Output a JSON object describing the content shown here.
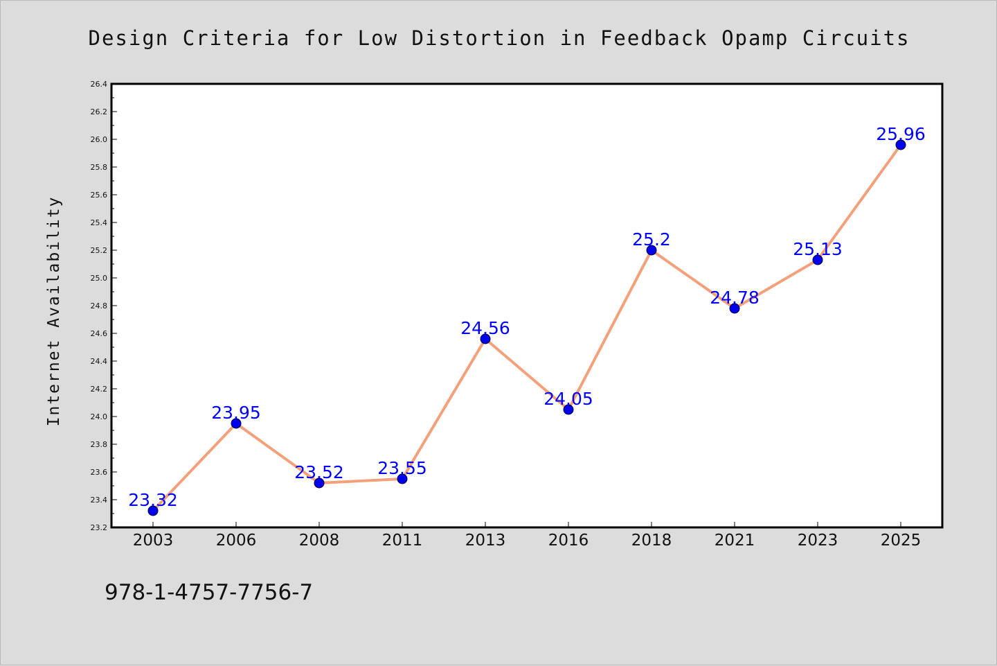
{
  "chart_data": {
    "type": "line",
    "title": "Design Criteria for Low Distortion in Feedback Opamp Circuits",
    "xlabel": "",
    "ylabel": "Internet Availability",
    "categories": [
      "2003",
      "2006",
      "2008",
      "2011",
      "2013",
      "2016",
      "2018",
      "2021",
      "2023",
      "2025"
    ],
    "series": [
      {
        "values": [
          23.32,
          23.95,
          23.52,
          23.55,
          24.56,
          24.05,
          25.2,
          24.78,
          25.13,
          25.96
        ]
      }
    ],
    "data_labels": [
      "23.32",
      "23.95",
      "23.52",
      "23.55",
      "24.56",
      "24.05",
      "25.2",
      "24.78",
      "25.13",
      "25.96"
    ],
    "ylim": [
      23.2,
      26.4
    ],
    "yticks": [
      "23.2",
      "23.4",
      "23.6",
      "23.8",
      "24.0",
      "24.2",
      "24.4",
      "24.6",
      "24.8",
      "25.0",
      "25.2",
      "25.4",
      "25.6",
      "25.8",
      "26.0",
      "26.2",
      "26.4"
    ],
    "grid": false,
    "legend": "none",
    "colors": {
      "line": "#f4a07a",
      "marker": "#0000ee",
      "data_label": "#0000ff",
      "background": "#dcdcdc",
      "plot_background": "#ffffff"
    }
  },
  "footer": {
    "isbn": "978-1-4757-7756-7"
  }
}
